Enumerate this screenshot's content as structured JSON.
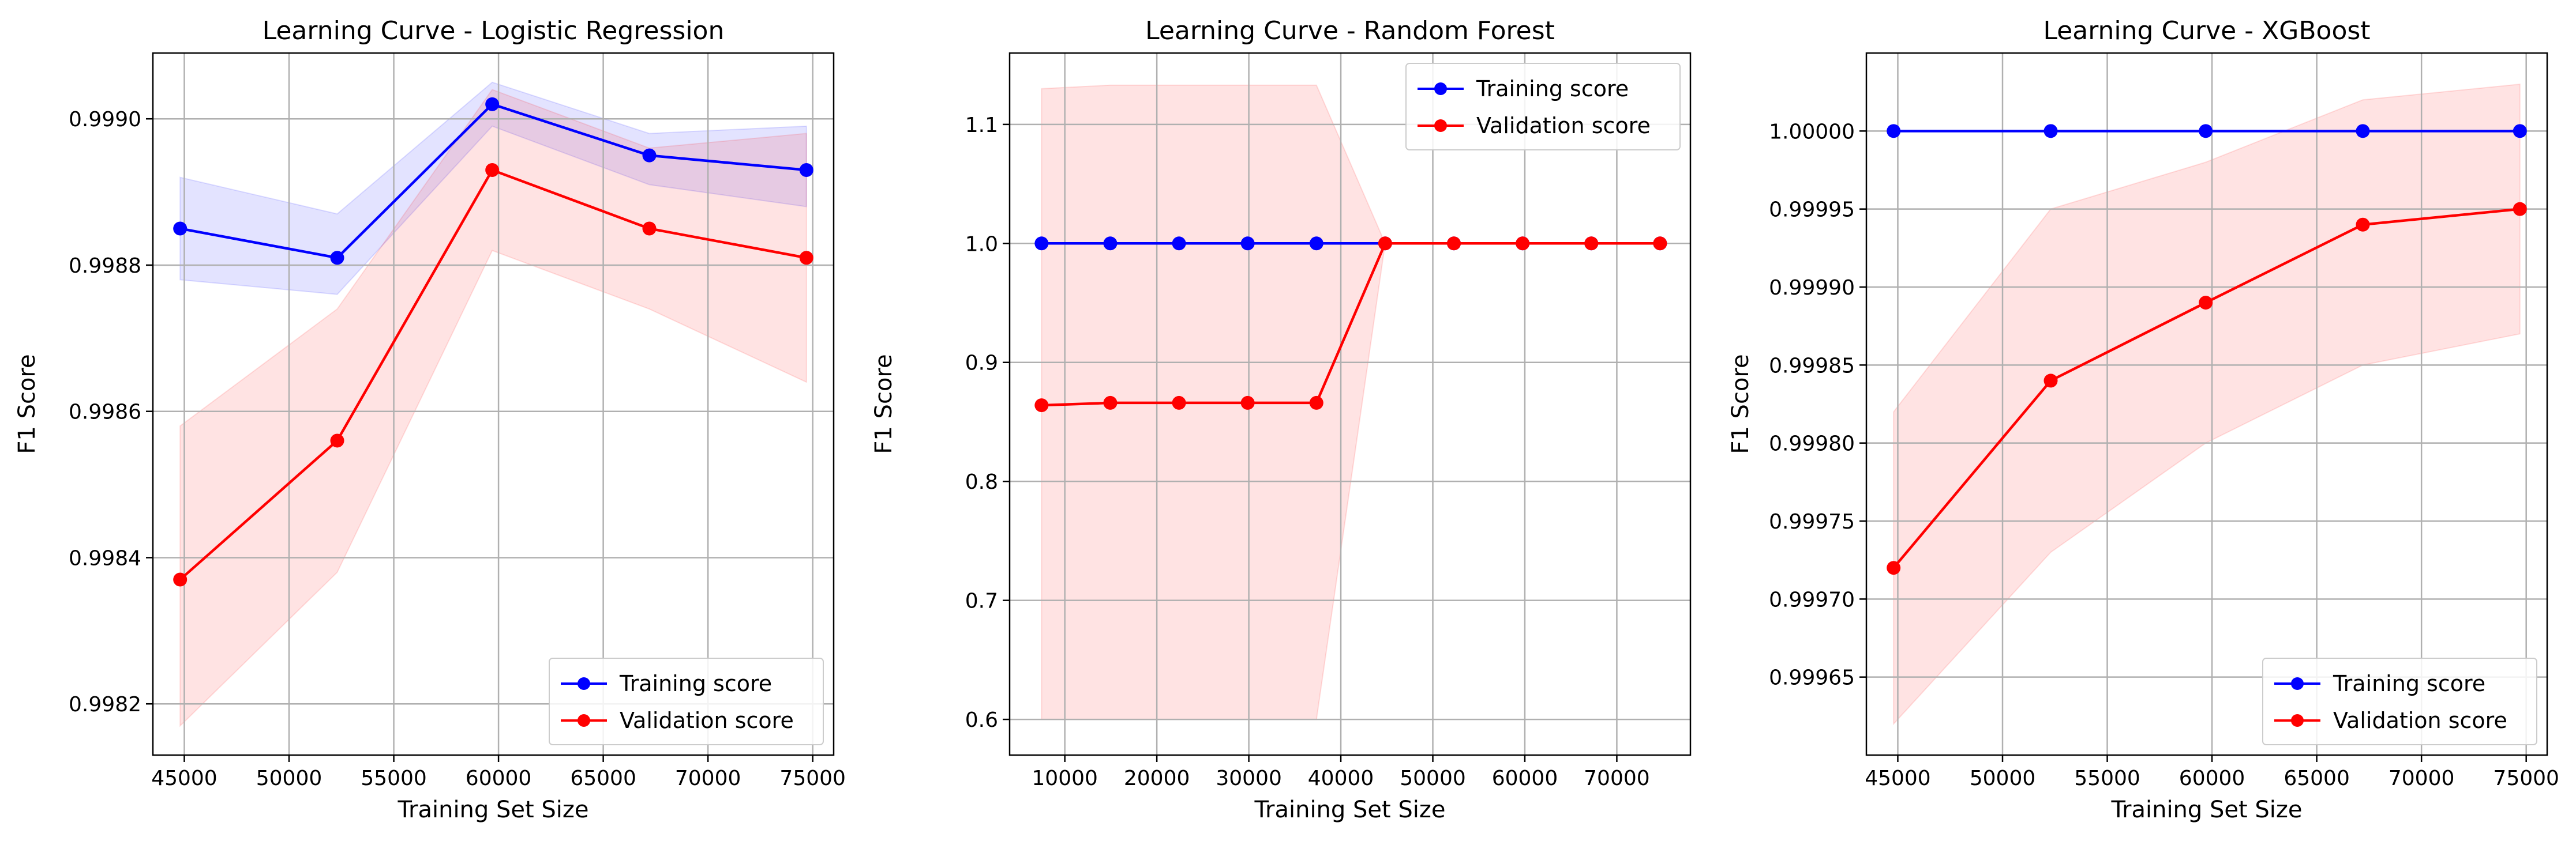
{
  "colors": {
    "training": "#0000ff",
    "validation": "#ff0000",
    "grid": "#b0b0b0",
    "axes": "#000000",
    "training_band": "#0000ff",
    "validation_band": "#ff0000"
  },
  "chart_data": [
    {
      "type": "line",
      "title": "Learning Curve - Logistic Regression",
      "xlabel": "Training Set Size",
      "ylabel": "F1 Score",
      "xlim": [
        43500,
        76000
      ],
      "ylim": [
        0.99813,
        0.99909
      ],
      "xticks": [
        45000,
        50000,
        55000,
        60000,
        65000,
        70000,
        75000
      ],
      "xtick_labels": [
        "45000",
        "50000",
        "55000",
        "60000",
        "65000",
        "70000",
        "75000"
      ],
      "yticks": [
        0.9982,
        0.9984,
        0.9986,
        0.9988,
        0.999
      ],
      "ytick_labels": [
        "0.9982",
        "0.9984",
        "0.9986",
        "0.9988",
        "0.9990"
      ],
      "grid": true,
      "legend_position": "lower right",
      "x": [
        44800,
        52300,
        59700,
        67200,
        74700
      ],
      "series": [
        {
          "name": "Training score",
          "values": [
            0.99885,
            0.99881,
            0.99902,
            0.99895,
            0.99893
          ],
          "band_low": [
            0.99878,
            0.99876,
            0.99899,
            0.99891,
            0.99888
          ],
          "band_high": [
            0.99892,
            0.99887,
            0.99905,
            0.99898,
            0.99899
          ]
        },
        {
          "name": "Validation score",
          "values": [
            0.99837,
            0.99856,
            0.99893,
            0.99885,
            0.99881
          ],
          "band_low": [
            0.99817,
            0.99838,
            0.99882,
            0.99874,
            0.99864
          ],
          "band_high": [
            0.99858,
            0.99874,
            0.99904,
            0.99896,
            0.99898
          ]
        }
      ]
    },
    {
      "type": "line",
      "title": "Learning Curve - Random Forest",
      "xlabel": "Training Set Size",
      "ylabel": "F1 Score",
      "xlim": [
        4000,
        78000
      ],
      "ylim": [
        0.57,
        1.16
      ],
      "xticks": [
        10000,
        20000,
        30000,
        40000,
        50000,
        60000,
        70000
      ],
      "xtick_labels": [
        "10000",
        "20000",
        "30000",
        "40000",
        "50000",
        "60000",
        "70000"
      ],
      "yticks": [
        0.6,
        0.7,
        0.8,
        0.9,
        1.0,
        1.1
      ],
      "ytick_labels": [
        "0.6",
        "0.7",
        "0.8",
        "0.9",
        "1.0",
        "1.1"
      ],
      "grid": true,
      "legend_position": "upper right",
      "x": [
        7470,
        14940,
        22410,
        29880,
        37350,
        44820,
        52290,
        59760,
        67230,
        74700
      ],
      "series": [
        {
          "name": "Training score",
          "values": [
            1.0,
            1.0,
            1.0,
            1.0,
            1.0,
            1.0,
            1.0,
            1.0,
            1.0,
            1.0
          ],
          "band_low": [
            1.0,
            1.0,
            1.0,
            1.0,
            1.0,
            1.0,
            1.0,
            1.0,
            1.0,
            1.0
          ],
          "band_high": [
            1.0,
            1.0,
            1.0,
            1.0,
            1.0,
            1.0,
            1.0,
            1.0,
            1.0,
            1.0
          ]
        },
        {
          "name": "Validation score",
          "values": [
            0.864,
            0.866,
            0.866,
            0.866,
            0.866,
            1.0,
            1.0,
            1.0,
            1.0,
            1.0
          ],
          "band_low": [
            0.6,
            0.6,
            0.6,
            0.6,
            0.6,
            1.0,
            1.0,
            1.0,
            1.0,
            1.0
          ],
          "band_high": [
            1.13,
            1.133,
            1.133,
            1.133,
            1.133,
            1.0,
            1.0,
            1.0,
            1.0,
            1.0
          ]
        }
      ]
    },
    {
      "type": "line",
      "title": "Learning Curve - XGBoost",
      "xlabel": "Training Set Size",
      "ylabel": "F1 Score",
      "xlim": [
        43500,
        76000
      ],
      "ylim": [
        0.9996,
        1.00005
      ],
      "xticks": [
        45000,
        50000,
        55000,
        60000,
        65000,
        70000,
        75000
      ],
      "xtick_labels": [
        "45000",
        "50000",
        "55000",
        "60000",
        "65000",
        "70000",
        "75000"
      ],
      "yticks": [
        0.99965,
        0.9997,
        0.99975,
        0.9998,
        0.99985,
        0.9999,
        0.99995,
        1.0
      ],
      "ytick_labels": [
        "0.99965",
        "0.99970",
        "0.99975",
        "0.99980",
        "0.99985",
        "0.99990",
        "0.99995",
        "1.00000"
      ],
      "grid": true,
      "legend_position": "lower right",
      "x": [
        44800,
        52300,
        59700,
        67200,
        74700
      ],
      "series": [
        {
          "name": "Training score",
          "values": [
            1.0,
            1.0,
            1.0,
            1.0,
            1.0
          ],
          "band_low": [
            1.0,
            1.0,
            1.0,
            1.0,
            1.0
          ],
          "band_high": [
            1.0,
            1.0,
            1.0,
            1.0,
            1.0
          ]
        },
        {
          "name": "Validation score",
          "values": [
            0.99972,
            0.99984,
            0.99989,
            0.99994,
            0.99995
          ],
          "band_low": [
            0.99962,
            0.99973,
            0.9998,
            0.99985,
            0.99987
          ],
          "band_high": [
            0.99982,
            0.99995,
            0.99998,
            1.00002,
            1.00003
          ]
        }
      ]
    }
  ]
}
